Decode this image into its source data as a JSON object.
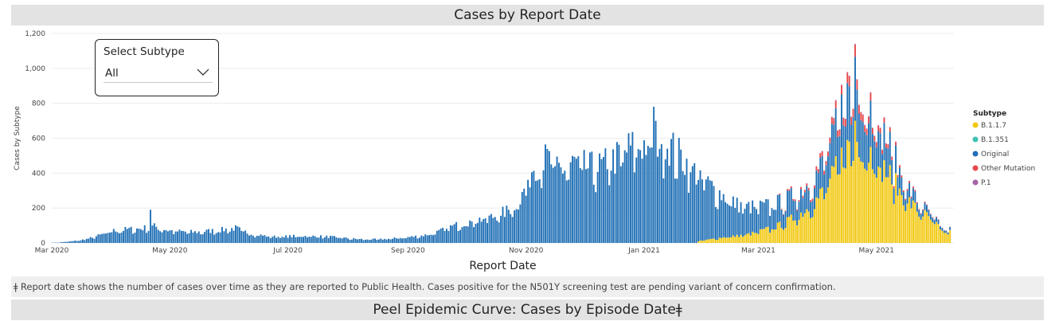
{
  "header": {
    "title": "Cases by Report Date"
  },
  "filter": {
    "title": "Select Subtype",
    "value": "All"
  },
  "chart_data": {
    "type": "bar",
    "stacked": true,
    "xlabel": "Report Date",
    "ylabel": "Cases by Subtype",
    "ylim": [
      0,
      1200
    ],
    "yticks": [
      0,
      200,
      400,
      600,
      800,
      1000,
      1200
    ],
    "ytick_labels": [
      "0",
      "200",
      "400",
      "600",
      "800",
      "1,000",
      "1,200"
    ],
    "x_start": "2020-03-01",
    "x_end": "2021-06-10",
    "xticks": [
      {
        "date": "2020-03-01",
        "label": "Mar 2020"
      },
      {
        "date": "2020-05-01",
        "label": "May 2020"
      },
      {
        "date": "2020-07-01",
        "label": "Jul 2020"
      },
      {
        "date": "2020-09-01",
        "label": "Sep 2020"
      },
      {
        "date": "2020-11-01",
        "label": "Nov 2020"
      },
      {
        "date": "2021-01-01",
        "label": "Jan 2021"
      },
      {
        "date": "2021-03-01",
        "label": "Mar 2021"
      },
      {
        "date": "2021-05-01",
        "label": "May 2021"
      }
    ],
    "grid": true,
    "legend_position": "right",
    "legend_title": "Subtype",
    "series": [
      {
        "name": "B.1.1.7",
        "color": "#f2c811"
      },
      {
        "name": "B.1.351",
        "color": "#3ec2b4"
      },
      {
        "name": "Original",
        "color": "#1f6fb5"
      },
      {
        "name": "Other Mutation",
        "color": "#e8474b"
      },
      {
        "name": "P.1",
        "color": "#a663a8"
      }
    ],
    "weekly_total": [
      {
        "week_start": "2020-03-02",
        "avg": 4
      },
      {
        "week_start": "2020-03-09",
        "avg": 10
      },
      {
        "week_start": "2020-03-16",
        "avg": 22
      },
      {
        "week_start": "2020-03-23",
        "avg": 45
      },
      {
        "week_start": "2020-03-30",
        "avg": 70
      },
      {
        "week_start": "2020-04-06",
        "avg": 78
      },
      {
        "week_start": "2020-04-13",
        "avg": 82
      },
      {
        "week_start": "2020-04-20",
        "avg": 95
      },
      {
        "week_start": "2020-04-27",
        "avg": 72
      },
      {
        "week_start": "2020-05-04",
        "avg": 65
      },
      {
        "week_start": "2020-05-11",
        "avg": 62
      },
      {
        "week_start": "2020-05-18",
        "avg": 68
      },
      {
        "week_start": "2020-05-25",
        "avg": 75
      },
      {
        "week_start": "2020-06-01",
        "avg": 85
      },
      {
        "week_start": "2020-06-08",
        "avg": 55
      },
      {
        "week_start": "2020-06-15",
        "avg": 42
      },
      {
        "week_start": "2020-06-22",
        "avg": 35
      },
      {
        "week_start": "2020-06-29",
        "avg": 38
      },
      {
        "week_start": "2020-07-06",
        "avg": 40
      },
      {
        "week_start": "2020-07-13",
        "avg": 38
      },
      {
        "week_start": "2020-07-20",
        "avg": 35
      },
      {
        "week_start": "2020-07-27",
        "avg": 28
      },
      {
        "week_start": "2020-08-03",
        "avg": 22
      },
      {
        "week_start": "2020-08-10",
        "avg": 20
      },
      {
        "week_start": "2020-08-17",
        "avg": 22
      },
      {
        "week_start": "2020-08-24",
        "avg": 28
      },
      {
        "week_start": "2020-08-31",
        "avg": 35
      },
      {
        "week_start": "2020-09-07",
        "avg": 45
      },
      {
        "week_start": "2020-09-14",
        "avg": 65
      },
      {
        "week_start": "2020-09-21",
        "avg": 95
      },
      {
        "week_start": "2020-09-28",
        "avg": 118
      },
      {
        "week_start": "2020-10-05",
        "avg": 135
      },
      {
        "week_start": "2020-10-12",
        "avg": 150
      },
      {
        "week_start": "2020-10-19",
        "avg": 180
      },
      {
        "week_start": "2020-10-26",
        "avg": 245
      },
      {
        "week_start": "2020-11-02",
        "avg": 450
      },
      {
        "week_start": "2020-11-09",
        "avg": 480
      },
      {
        "week_start": "2020-11-16",
        "avg": 420
      },
      {
        "week_start": "2020-11-23",
        "avg": 460
      },
      {
        "week_start": "2020-11-30",
        "avg": 430
      },
      {
        "week_start": "2020-12-07",
        "avg": 440
      },
      {
        "week_start": "2020-12-14",
        "avg": 480
      },
      {
        "week_start": "2020-12-21",
        "avg": 540
      },
      {
        "week_start": "2020-12-28",
        "avg": 560
      },
      {
        "week_start": "2021-01-04",
        "avg": 600
      },
      {
        "week_start": "2021-01-11",
        "avg": 560
      },
      {
        "week_start": "2021-01-18",
        "avg": 480
      },
      {
        "week_start": "2021-01-25",
        "avg": 400
      },
      {
        "week_start": "2021-02-01",
        "avg": 330
      },
      {
        "week_start": "2021-02-08",
        "avg": 270
      },
      {
        "week_start": "2021-02-15",
        "avg": 220
      },
      {
        "week_start": "2021-02-22",
        "avg": 205
      },
      {
        "week_start": "2021-03-01",
        "avg": 210
      },
      {
        "week_start": "2021-03-08",
        "avg": 230
      },
      {
        "week_start": "2021-03-15",
        "avg": 270
      },
      {
        "week_start": "2021-03-22",
        "avg": 330
      },
      {
        "week_start": "2021-03-29",
        "avg": 430
      },
      {
        "week_start": "2021-04-05",
        "avg": 600
      },
      {
        "week_start": "2021-04-12",
        "avg": 880
      },
      {
        "week_start": "2021-04-19",
        "avg": 950
      },
      {
        "week_start": "2021-04-26",
        "avg": 790
      },
      {
        "week_start": "2021-05-03",
        "avg": 620
      },
      {
        "week_start": "2021-05-10",
        "avg": 420
      },
      {
        "week_start": "2021-05-17",
        "avg": 280
      },
      {
        "week_start": "2021-05-24",
        "avg": 190
      },
      {
        "week_start": "2021-05-31",
        "avg": 110
      }
    ],
    "weekly_share_b117": [
      {
        "week_start": "2021-01-25",
        "share": 0.02
      },
      {
        "week_start": "2021-02-01",
        "share": 0.06
      },
      {
        "week_start": "2021-02-08",
        "share": 0.12
      },
      {
        "week_start": "2021-02-15",
        "share": 0.18
      },
      {
        "week_start": "2021-02-22",
        "share": 0.25
      },
      {
        "week_start": "2021-03-01",
        "share": 0.35
      },
      {
        "week_start": "2021-03-08",
        "share": 0.42
      },
      {
        "week_start": "2021-03-15",
        "share": 0.5
      },
      {
        "week_start": "2021-03-22",
        "share": 0.56
      },
      {
        "week_start": "2021-03-29",
        "share": 0.6
      },
      {
        "week_start": "2021-04-05",
        "share": 0.61
      },
      {
        "week_start": "2021-04-12",
        "share": 0.6
      },
      {
        "week_start": "2021-04-19",
        "share": 0.62
      },
      {
        "week_start": "2021-04-26",
        "share": 0.64
      },
      {
        "week_start": "2021-05-03",
        "share": 0.66
      },
      {
        "week_start": "2021-05-10",
        "share": 0.7
      },
      {
        "week_start": "2021-05-17",
        "share": 0.75
      },
      {
        "week_start": "2021-05-24",
        "share": 0.8
      },
      {
        "week_start": "2021-05-31",
        "share": 0.8
      }
    ],
    "weekly_share_other_mutation": [
      {
        "week_start": "2021-03-08",
        "share": 0.02
      },
      {
        "week_start": "2021-03-15",
        "share": 0.03
      },
      {
        "week_start": "2021-03-22",
        "share": 0.04
      },
      {
        "week_start": "2021-03-29",
        "share": 0.05
      },
      {
        "week_start": "2021-04-05",
        "share": 0.05
      },
      {
        "week_start": "2021-04-12",
        "share": 0.06
      },
      {
        "week_start": "2021-04-19",
        "share": 0.06
      },
      {
        "week_start": "2021-04-26",
        "share": 0.05
      },
      {
        "week_start": "2021-05-03",
        "share": 0.04
      },
      {
        "week_start": "2021-05-10",
        "share": 0.03
      },
      {
        "week_start": "2021-05-17",
        "share": 0.03
      },
      {
        "week_start": "2021-05-24",
        "share": 0.02
      },
      {
        "week_start": "2021-05-31",
        "share": 0.02
      }
    ],
    "peaks": [
      {
        "date": "2020-04-21",
        "total": 190
      },
      {
        "date": "2021-01-06",
        "total": 780
      },
      {
        "date": "2021-04-20",
        "total": 1140
      }
    ]
  },
  "footnote": "ǂ Report date shows the number of cases over time as they are reported to Public Health. Cases positive for the N501Y screening test are pending variant of concern confirmation.",
  "bottom_section": {
    "title": "Peel Epidemic Curve: Cases by Episode Dateǂ"
  }
}
